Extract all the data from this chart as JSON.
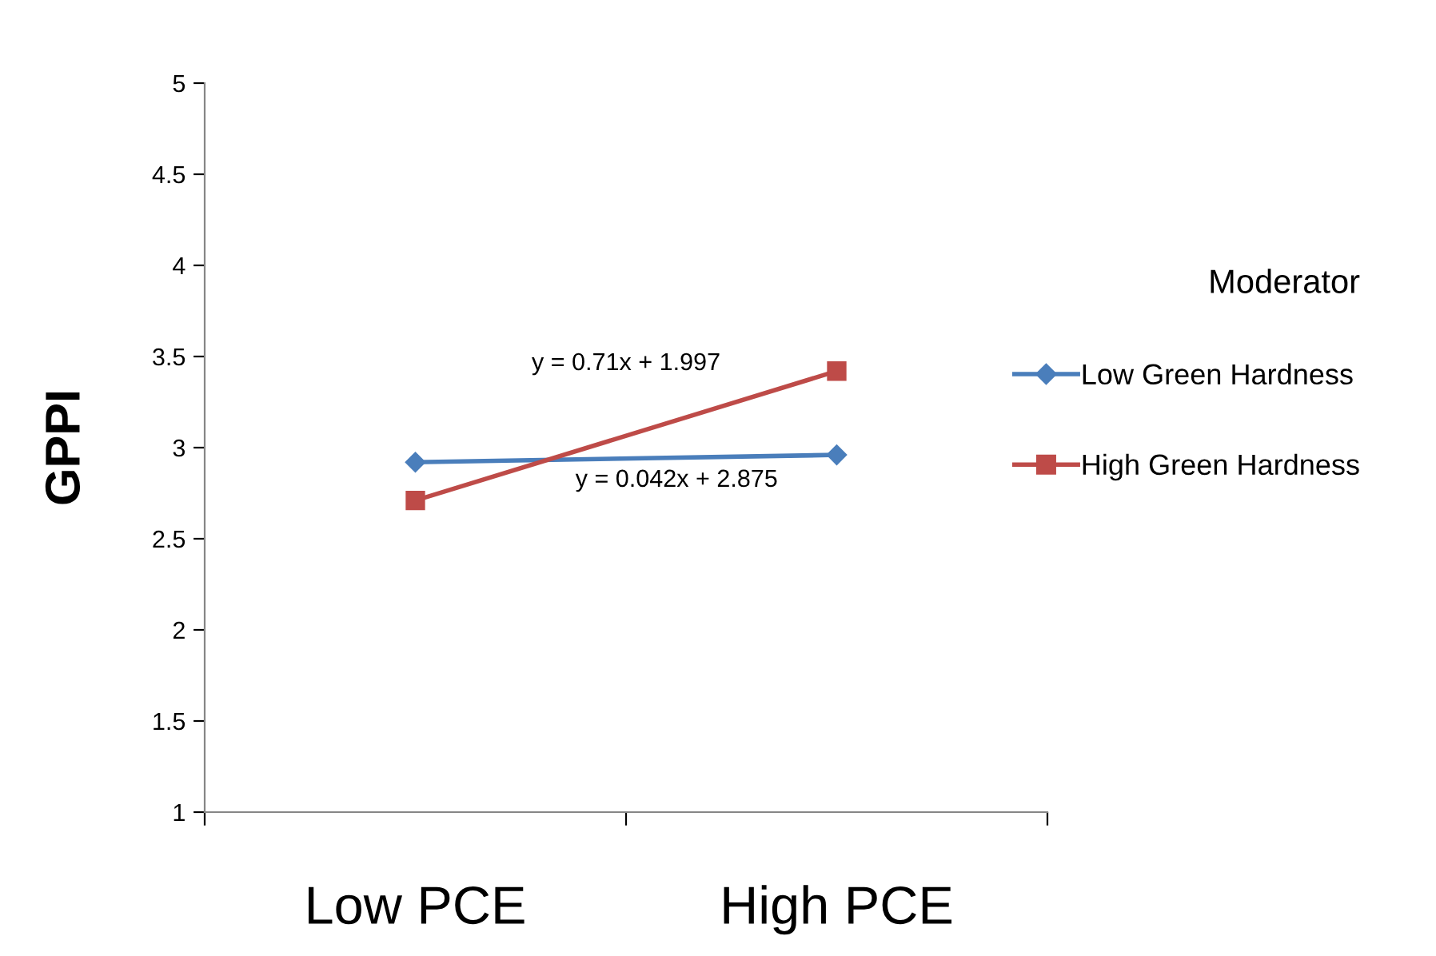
{
  "chart_data": {
    "type": "line",
    "ylabel": "GPPI",
    "legend_title": "Moderator",
    "categories": [
      "Low PCE",
      "High PCE"
    ],
    "series": [
      {
        "name": "Low Green Hardness",
        "color": "#4a7ebb",
        "marker": "diamond",
        "values": [
          2.92,
          2.96
        ]
      },
      {
        "name": "High Green Hardness",
        "color": "#be4b48",
        "marker": "square",
        "values": [
          2.71,
          3.42
        ]
      }
    ],
    "annotations": [
      "y = 0.042x + 2.875",
      "y = 0.71x + 1.997"
    ],
    "ylim": [
      1,
      5
    ],
    "yticks": [
      1,
      1.5,
      2,
      2.5,
      3,
      3.5,
      4,
      4.5,
      5
    ],
    "grid": false,
    "legend": "right"
  }
}
